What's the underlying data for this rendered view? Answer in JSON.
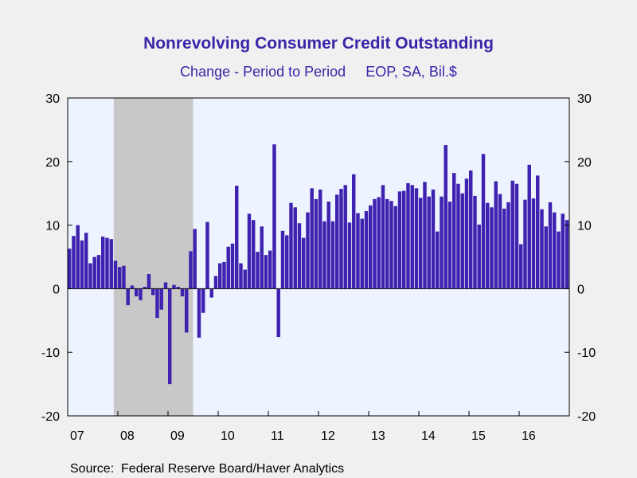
{
  "chart_data": {
    "type": "bar",
    "title": "Nonrevolving Consumer Credit Outstanding",
    "subtitle": "Change - Period to Period     EOP, SA, Bil.$",
    "source": "Source:  Federal Reserve Board/Haver Analytics",
    "ylim": [
      -20,
      30
    ],
    "yticks": [
      -20,
      -10,
      0,
      10,
      20,
      30
    ],
    "ytick_labels": [
      "-20",
      "-10",
      "0",
      "10",
      "20",
      "30"
    ],
    "xtick_labels": [
      "07",
      "08",
      "09",
      "10",
      "11",
      "12",
      "13",
      "14",
      "15",
      "16"
    ],
    "start": "2007-01",
    "end": "2016-12",
    "frequency": "monthly",
    "recession": {
      "start": "2007-12",
      "end": "2009-06"
    },
    "grid": false,
    "colors": {
      "bar": "#3f22b0",
      "recession": "#c8c8c8",
      "plot_bg": "#eef4ff",
      "title": "#3a25a8",
      "page_bg": "#f0f0f0"
    },
    "series": [
      {
        "values": [
          6.3,
          8.3,
          10.0,
          7.6,
          8.8,
          4.0,
          5.0,
          5.3,
          8.2,
          8.0,
          7.8,
          4.4,
          3.4,
          3.6,
          -2.6,
          0.5,
          -1.2,
          -1.8,
          0.3,
          2.3,
          -1.0,
          -4.6,
          -3.3,
          1.0,
          -15.0,
          0.6,
          0.3,
          -1.2,
          -6.9,
          5.9,
          9.4,
          -7.7,
          -3.8,
          10.5,
          -1.4,
          2.0,
          4.0,
          4.2,
          6.6,
          7.1,
          16.2,
          4.0,
          3.0,
          11.8,
          10.8,
          5.8,
          9.8,
          5.3,
          6.0,
          22.7,
          -7.6,
          9.1,
          8.4,
          13.5,
          12.8,
          10.3,
          8.0,
          12.0,
          15.8,
          14.1,
          15.6,
          10.6,
          13.7,
          10.6,
          14.8,
          15.7,
          16.3,
          10.4,
          18.0,
          11.9,
          11.0,
          12.2,
          13.1,
          14.1,
          14.4,
          16.3,
          14.1,
          13.8,
          13.0,
          15.3,
          15.4,
          16.6,
          16.3,
          15.8,
          14.3,
          16.8,
          14.5,
          15.6,
          9.0,
          14.5,
          22.6,
          13.7,
          18.2,
          16.5,
          15.0,
          17.3,
          18.6,
          14.6,
          10.1,
          21.2,
          13.5,
          12.8,
          16.9,
          14.9,
          12.6,
          13.6,
          17.0,
          16.5,
          7.0,
          14.0,
          19.5,
          14.2,
          17.8,
          12.5,
          9.8,
          13.6,
          12.0,
          9.0,
          11.8,
          10.8
        ]
      }
    ]
  }
}
